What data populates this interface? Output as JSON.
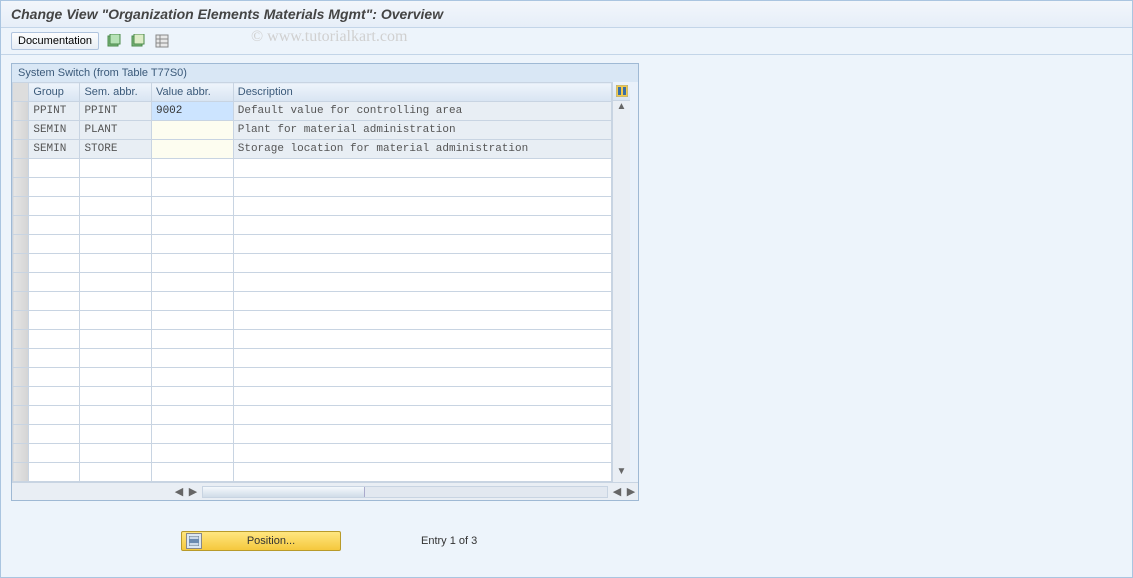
{
  "title": "Change View \"Organization Elements Materials Mgmt\": Overview",
  "toolbar": {
    "documentation_label": "Documentation"
  },
  "watermark": "© www.tutorialkart.com",
  "panel": {
    "title": "System Switch (from Table T77S0)",
    "columns": {
      "group": "Group",
      "sem": "Sem. abbr.",
      "val": "Value abbr.",
      "desc": "Description"
    },
    "rows": [
      {
        "group": "PPINT",
        "sem": "PPINT",
        "val": "9002",
        "desc": "Default value for controlling area",
        "selected": true
      },
      {
        "group": "SEMIN",
        "sem": "PLANT",
        "val": "",
        "desc": "Plant for material administration",
        "selected": false
      },
      {
        "group": "SEMIN",
        "sem": "STORE",
        "val": "",
        "desc": "Storage location for material administration",
        "selected": false
      }
    ],
    "empty_row_count": 17
  },
  "footer": {
    "position_label": "Position...",
    "entry_text": "Entry 1 of 3"
  },
  "colors": {
    "page_bg": "#edf4fb",
    "panel_border": "#9fb9d4",
    "header_grad_top": "#eef4fb",
    "header_grad_bottom": "#d8e4f2",
    "readonly_bg": "#e8eef4",
    "editable_bg": "#fdfdf0",
    "selected_bg": "#cce4ff",
    "position_btn_top": "#ffe680",
    "position_btn_bottom": "#f5c83d"
  }
}
